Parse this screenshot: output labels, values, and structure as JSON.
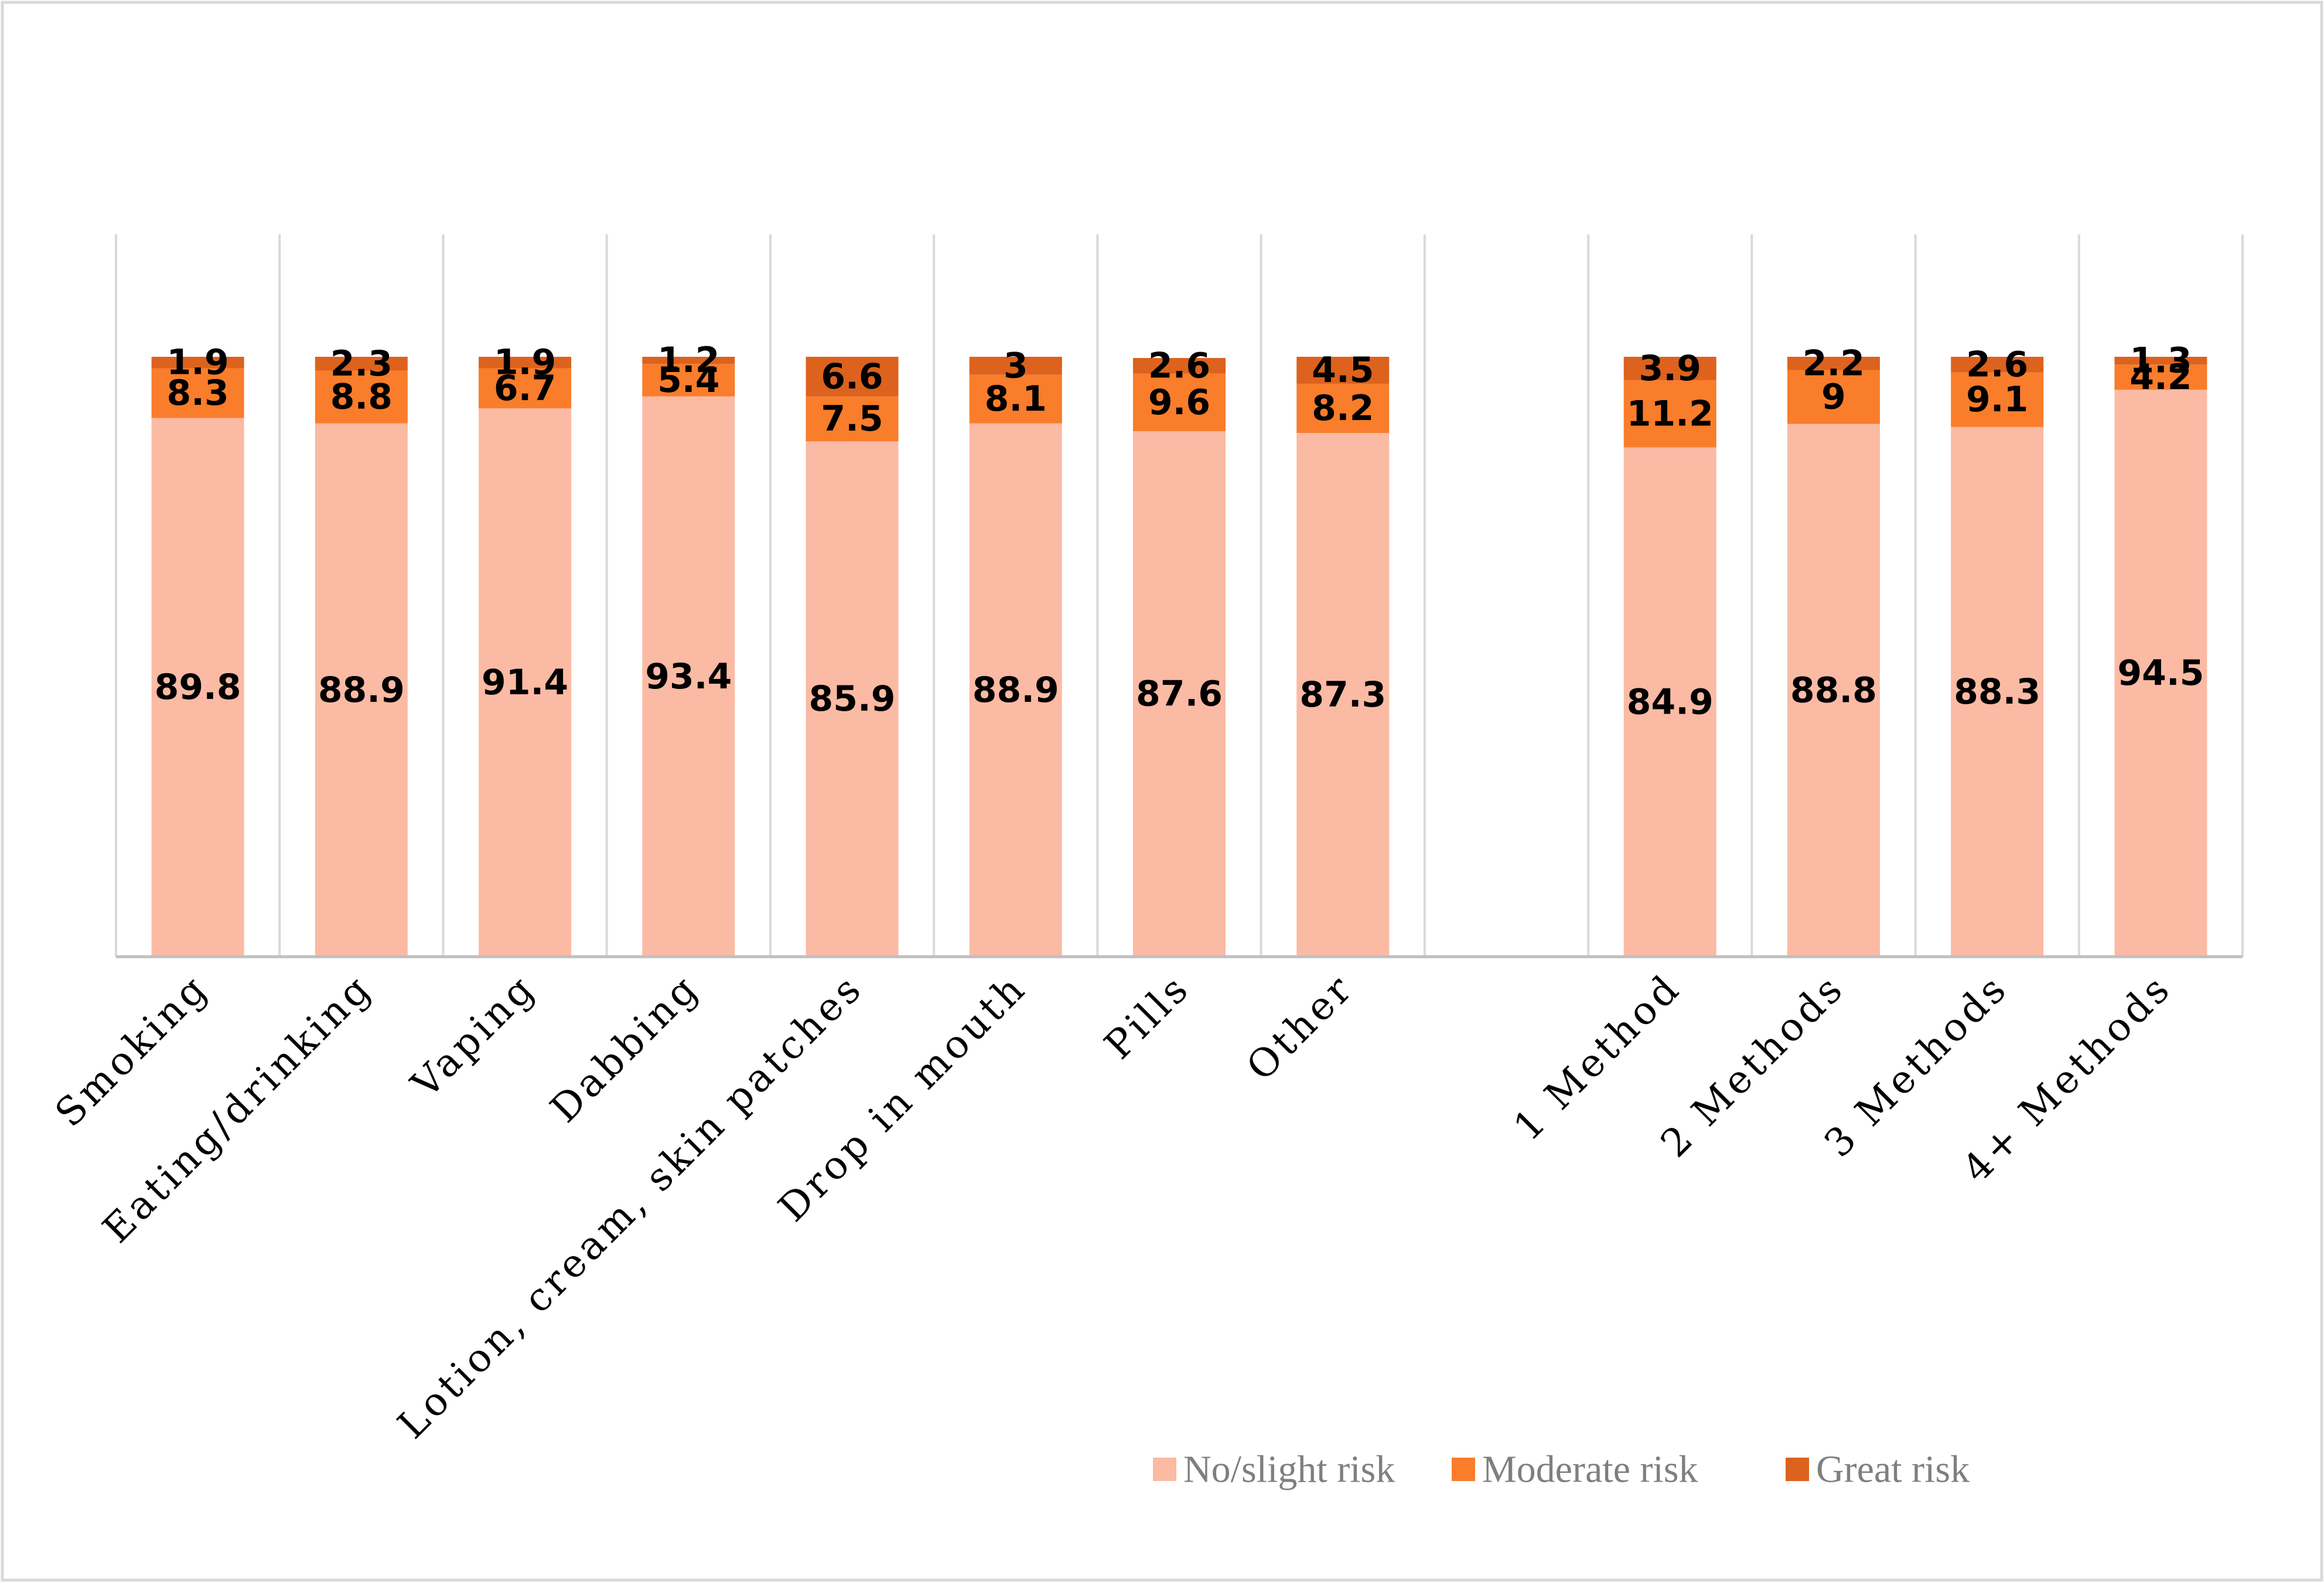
{
  "chart_data": {
    "type": "bar",
    "stacked": true,
    "title": "",
    "xlabel": "",
    "ylabel": "",
    "ylim": [
      0,
      100
    ],
    "categories": [
      "Smoking",
      "Eating/drinking",
      "Vaping",
      "Dabbing",
      "Lotion, cream, skin patches",
      "Drop in mouth",
      "Pills",
      "Other",
      "",
      "1 Method",
      "2 Methods",
      "3 Methods",
      "4+ Methods"
    ],
    "series": [
      {
        "name": "No/slight risk",
        "color": "#fbbaa3",
        "values": [
          89.8,
          88.9,
          91.4,
          93.4,
          85.9,
          88.9,
          87.6,
          87.3,
          null,
          84.9,
          88.8,
          88.3,
          94.5
        ]
      },
      {
        "name": "Moderate risk",
        "color": "#f97d2b",
        "values": [
          8.3,
          8.8,
          6.7,
          5.4,
          7.5,
          8.1,
          9.6,
          8.2,
          null,
          11.2,
          9,
          9.1,
          4.2
        ]
      },
      {
        "name": "Great risk",
        "color": "#dc621e",
        "values": [
          1.9,
          2.3,
          1.9,
          1.2,
          6.6,
          3,
          2.6,
          4.5,
          null,
          3.9,
          2.2,
          2.6,
          1.3
        ]
      }
    ],
    "grid": true,
    "legend_position": "bottom-right"
  }
}
